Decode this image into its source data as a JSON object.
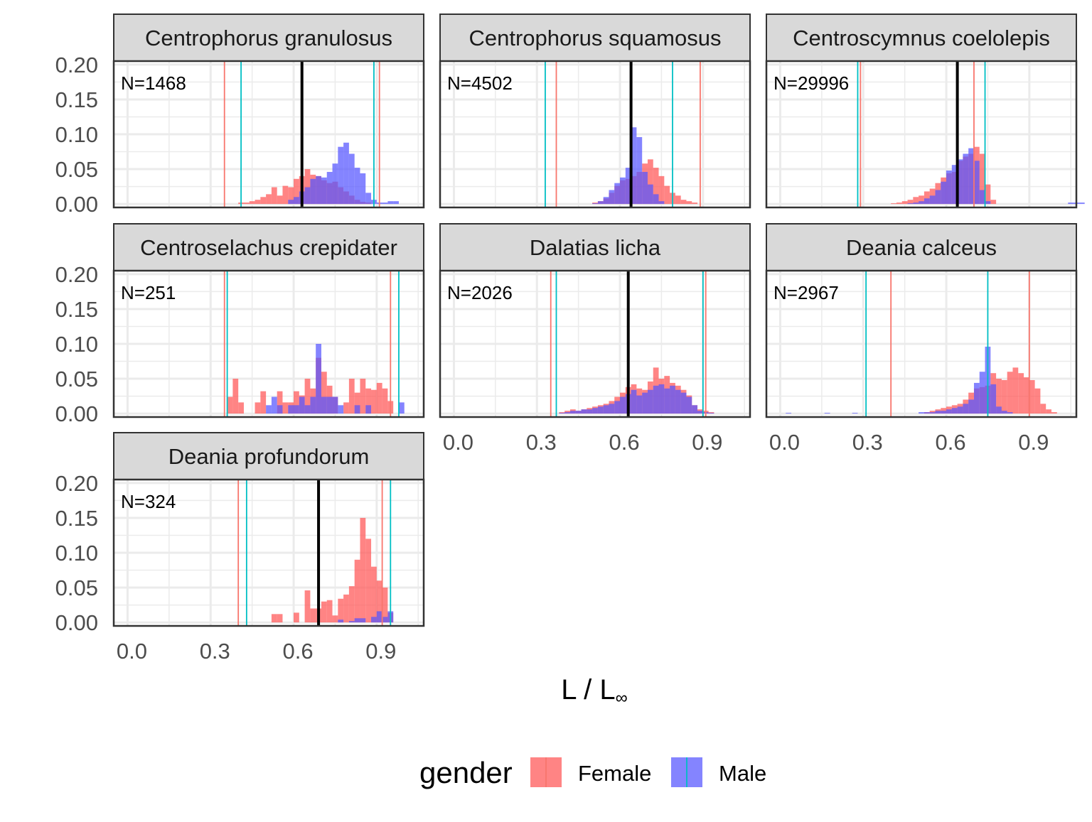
{
  "chart_data": {
    "type": "histogram",
    "xlabel": "L / L∞",
    "ylabel": "",
    "xlim": [
      -0.05,
      1.07
    ],
    "ylim": [
      -0.005,
      0.205
    ],
    "x_ticks": [
      "0.0",
      "0.3",
      "0.6",
      "0.9"
    ],
    "y_ticks": [
      "0.00",
      "0.05",
      "0.10",
      "0.15",
      "0.20"
    ],
    "bin_width": 0.02,
    "grid": true,
    "legend": {
      "title": "gender",
      "position": "bottom",
      "items": [
        {
          "label": "Female",
          "color": "#F8766D"
        },
        {
          "label": "Male",
          "color": "#4A4AFF"
        }
      ]
    },
    "colors": {
      "female_fill": "#FF5555",
      "male_fill": "#5555FF",
      "female_line": "#F8766D",
      "male_line": "#00BFC4",
      "median_line": "#000000"
    },
    "panels": [
      {
        "title": "Centrophorus granulosus",
        "n_label": "N=1468",
        "median": 0.63,
        "female_lines": [
          0.35,
          0.91
        ],
        "male_lines": [
          0.41,
          0.89
        ],
        "female": {
          "start": 0.4,
          "values": [
            0.002,
            0.002,
            0.004,
            0.006,
            0.01,
            0.014,
            0.024,
            0.012,
            0.026,
            0.024,
            0.036,
            0.04,
            0.05,
            0.042,
            0.04,
            0.034,
            0.03,
            0.032,
            0.024,
            0.018,
            0.012,
            0.006,
            0.003,
            0.002
          ]
        },
        "male": {
          "start": 0.58,
          "values": [
            0.006,
            0.01,
            0.018,
            0.024,
            0.036,
            0.04,
            0.038,
            0.046,
            0.058,
            0.082,
            0.088,
            0.072,
            0.052,
            0.044,
            0.016,
            0.006,
            0.002,
            0.002,
            0.004,
            0.004
          ]
        }
      },
      {
        "title": "Centrophorus squamosus",
        "n_label": "N=4502",
        "median": 0.64,
        "female_lines": [
          0.37,
          0.89
        ],
        "male_lines": [
          0.33,
          0.79
        ],
        "female": {
          "start": 0.5,
          "values": [
            0.002,
            0.004,
            0.008,
            0.016,
            0.026,
            0.034,
            0.036,
            0.04,
            0.046,
            0.058,
            0.064,
            0.052,
            0.04,
            0.026,
            0.016,
            0.012,
            0.006,
            0.004,
            0.002
          ]
        },
        "male": {
          "start": 0.5,
          "values": [
            0.001,
            0.004,
            0.01,
            0.02,
            0.03,
            0.038,
            0.052,
            0.11,
            0.096,
            0.046,
            0.028,
            0.014,
            0.004
          ]
        }
      },
      {
        "title": "Centroscymnus coelolepis",
        "n_label": "N=29996",
        "median": 0.64,
        "female_lines": [
          0.29,
          0.7
        ],
        "male_lines": [
          0.28,
          0.74
        ],
        "female": {
          "start": 0.4,
          "values": [
            0.001,
            0.002,
            0.004,
            0.006,
            0.01,
            0.012,
            0.018,
            0.022,
            0.03,
            0.038,
            0.044,
            0.046,
            0.062,
            0.068,
            0.072,
            0.082,
            0.072,
            0.028,
            0.006
          ]
        },
        "male": {
          "start": 0.46,
          "values": [
            0.001,
            0.002,
            0.004,
            0.008,
            0.012,
            0.02,
            0.032,
            0.048,
            0.056,
            0.064,
            0.072,
            0.08,
            0.062,
            0.02,
            0.004,
            0.0,
            0.0,
            0.0,
            0.0,
            0.0,
            0.0,
            0.0,
            0.0,
            0.0,
            0.0,
            0.0,
            0.0,
            0.0,
            0.0,
            0.002,
            0.002,
            0.002
          ]
        }
      },
      {
        "title": "Centroselachus crepidater",
        "n_label": "N=251",
        "median": null,
        "female_lines": [
          0.35,
          0.95
        ],
        "male_lines": [
          0.36,
          0.98
        ],
        "female": {
          "start": 0.36,
          "values": [
            0.024,
            0.05,
            0.016,
            0.0,
            0.0,
            0.016,
            0.032,
            0.0,
            0.0,
            0.032,
            0.016,
            0.016,
            0.032,
            0.026,
            0.05,
            0.036,
            0.08,
            0.06,
            0.04,
            0.024,
            0.0,
            0.016,
            0.05,
            0.03,
            0.05,
            0.036,
            0.034,
            0.044,
            0.036,
            0.018
          ]
        },
        "male": {
          "start": 0.5,
          "values": [
            0.012,
            0.024,
            0.012,
            0.0,
            0.012,
            0.012,
            0.024,
            0.012,
            0.024,
            0.1,
            0.024,
            0.024,
            0.024,
            0.012,
            0.0,
            0.0,
            0.012,
            0.0,
            0.012,
            0.0,
            0.0,
            0.0,
            0.0,
            0.0,
            0.016
          ]
        }
      },
      {
        "title": "Dalatias licha",
        "n_label": "N=2026",
        "median": 0.63,
        "female_lines": [
          0.35,
          0.91
        ],
        "male_lines": [
          0.37,
          0.9
        ],
        "female": {
          "start": 0.38,
          "values": [
            0.002,
            0.004,
            0.006,
            0.004,
            0.006,
            0.008,
            0.01,
            0.012,
            0.014,
            0.018,
            0.024,
            0.03,
            0.038,
            0.042,
            0.036,
            0.034,
            0.046,
            0.066,
            0.05,
            0.054,
            0.044,
            0.04,
            0.034,
            0.026,
            0.012,
            0.006,
            0.004,
            0.002
          ]
        },
        "male": {
          "start": 0.38,
          "values": [
            0.001,
            0.002,
            0.004,
            0.004,
            0.006,
            0.006,
            0.008,
            0.01,
            0.012,
            0.014,
            0.018,
            0.024,
            0.028,
            0.034,
            0.026,
            0.03,
            0.034,
            0.04,
            0.042,
            0.036,
            0.04,
            0.034,
            0.03,
            0.024,
            0.012,
            0.004,
            0.002,
            0.001
          ]
        }
      },
      {
        "title": "Deania calceus",
        "n_label": "N=2967",
        "median": null,
        "female_lines": [
          0.4,
          0.9
        ],
        "male_lines": [
          0.31,
          0.75
        ],
        "female": {
          "start": 0.52,
          "values": [
            0.002,
            0.004,
            0.006,
            0.008,
            0.01,
            0.012,
            0.014,
            0.02,
            0.03,
            0.036,
            0.038,
            0.04,
            0.058,
            0.05,
            0.048,
            0.06,
            0.066,
            0.058,
            0.052,
            0.048,
            0.036,
            0.014,
            0.006,
            0.002
          ]
        },
        "male": {
          "start": 0.02,
          "values": [
            0.001,
            0.0,
            0.0,
            0.0,
            0.0,
            0.0,
            0.0,
            0.001,
            0.0,
            0.0,
            0.0,
            0.0,
            0.001,
            0.0,
            0.0,
            0.0,
            0.0,
            0.0,
            0.0,
            0.0,
            0.0,
            0.0,
            0.0,
            0.0,
            0.002,
            0.002,
            0.002,
            0.004,
            0.004,
            0.006,
            0.008,
            0.01,
            0.014,
            0.02,
            0.044,
            0.06,
            0.096,
            0.042,
            0.01,
            0.004,
            0.002
          ]
        }
      },
      {
        "title": "Deania profundorum",
        "n_label": "N=324",
        "median": 0.69,
        "female_lines": [
          0.4,
          0.92
        ],
        "male_lines": [
          0.43,
          0.95
        ],
        "female": {
          "start": 0.52,
          "values": [
            0.012,
            0.012,
            0.0,
            0.0,
            0.014,
            0.0,
            0.046,
            0.02,
            0.02,
            0.03,
            0.032,
            0.01,
            0.034,
            0.04,
            0.052,
            0.09,
            0.15,
            0.12,
            0.08,
            0.06,
            0.05,
            0.014
          ]
        },
        "male": {
          "start": 0.76,
          "values": [
            0.004,
            0.0,
            0.002,
            0.006,
            0.006,
            0.0,
            0.008,
            0.016,
            0.008,
            0.016
          ]
        }
      }
    ]
  }
}
